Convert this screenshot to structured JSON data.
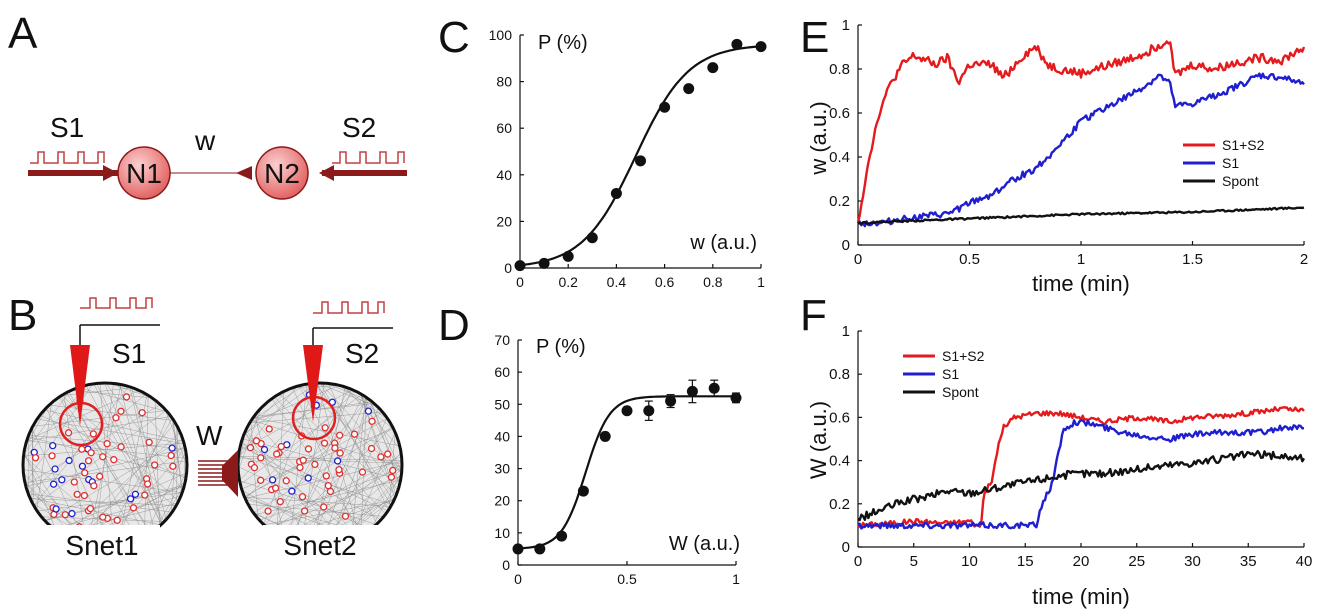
{
  "panels": {
    "A": {
      "label": "A",
      "s1": "S1",
      "s2": "S2",
      "w": "w",
      "n1": "N1",
      "n2": "N2"
    },
    "B": {
      "label": "B",
      "s1": "S1",
      "s2": "S2",
      "W": "W",
      "snet1": "Snet1",
      "snet2": "Snet2"
    }
  },
  "colors": {
    "dark_red": "#8B1A1A",
    "stim_red": "#E03030",
    "neuron_fill": "#F08080",
    "red_series": "#E41A1C",
    "blue_series": "#1F1FCF",
    "black_series": "#111111"
  },
  "chart_data": [
    {
      "id": "C",
      "panel_label": "C",
      "type": "scatter",
      "ylabel": "P (%)",
      "xlabel": "w (a.u.)",
      "xlim": [
        0,
        1
      ],
      "ylim": [
        0,
        100
      ],
      "xticks": [
        "0",
        "0.2",
        "0.4",
        "0.6",
        "0.8",
        "1"
      ],
      "yticks": [
        "0",
        "20",
        "40",
        "60",
        "80",
        "100"
      ],
      "points": [
        [
          0,
          1
        ],
        [
          0.1,
          2
        ],
        [
          0.2,
          5
        ],
        [
          0.3,
          13
        ],
        [
          0.4,
          32
        ],
        [
          0.5,
          46
        ],
        [
          0.6,
          69
        ],
        [
          0.7,
          77
        ],
        [
          0.8,
          86
        ],
        [
          0.9,
          96
        ],
        [
          1.0,
          95
        ]
      ],
      "fit": {
        "type": "sigmoid",
        "min": 0,
        "max": 96,
        "x0": 0.48,
        "k": 0.11
      }
    },
    {
      "id": "D",
      "panel_label": "D",
      "type": "scatter",
      "ylabel": "P (%)",
      "xlabel": "W (a.u.)",
      "xlim": [
        0,
        1
      ],
      "ylim": [
        0,
        70
      ],
      "xticks": [
        "0",
        "0.5",
        "1"
      ],
      "yticks": [
        "0",
        "10",
        "20",
        "30",
        "40",
        "50",
        "60",
        "70"
      ],
      "points": [
        [
          0,
          5
        ],
        [
          0.1,
          5
        ],
        [
          0.2,
          9
        ],
        [
          0.3,
          23
        ],
        [
          0.4,
          40
        ],
        [
          0.5,
          48
        ],
        [
          0.6,
          48
        ],
        [
          0.7,
          51
        ],
        [
          0.8,
          54
        ],
        [
          0.9,
          55
        ],
        [
          1.0,
          52
        ]
      ],
      "errors": [
        0,
        0,
        0,
        0,
        0,
        0,
        3,
        2,
        3.5,
        2.5,
        1.5
      ],
      "fit": {
        "type": "sigmoid",
        "min": 5,
        "max": 52.5,
        "x0": 0.31,
        "k": 0.055
      }
    },
    {
      "id": "E",
      "panel_label": "E",
      "type": "line",
      "ylabel": "w (a.u.)",
      "xlabel": "time (min)",
      "xlim": [
        0,
        2
      ],
      "ylim": [
        0,
        1
      ],
      "xticks": [
        "0",
        "0.5",
        "1",
        "1.5",
        "2"
      ],
      "yticks": [
        "0",
        "0.2",
        "0.4",
        "0.6",
        "0.8",
        "1"
      ],
      "legend_position": "right-middle",
      "series": [
        {
          "name": "S1+S2",
          "color": "#E41A1C",
          "noise": 0.02,
          "points": [
            [
              0,
              0.1
            ],
            [
              0.05,
              0.4
            ],
            [
              0.1,
              0.62
            ],
            [
              0.15,
              0.74
            ],
            [
              0.2,
              0.82
            ],
            [
              0.25,
              0.86
            ],
            [
              0.3,
              0.84
            ],
            [
              0.35,
              0.82
            ],
            [
              0.4,
              0.85
            ],
            [
              0.45,
              0.74
            ],
            [
              0.5,
              0.82
            ],
            [
              0.6,
              0.82
            ],
            [
              0.65,
              0.76
            ],
            [
              0.75,
              0.87
            ],
            [
              0.8,
              0.9
            ],
            [
              0.85,
              0.82
            ],
            [
              0.9,
              0.8
            ],
            [
              1.0,
              0.78
            ],
            [
              1.1,
              0.81
            ],
            [
              1.2,
              0.84
            ],
            [
              1.3,
              0.88
            ],
            [
              1.4,
              0.94
            ],
            [
              1.42,
              0.77
            ],
            [
              1.5,
              0.82
            ],
            [
              1.6,
              0.8
            ],
            [
              1.7,
              0.83
            ],
            [
              1.8,
              0.85
            ],
            [
              1.9,
              0.84
            ],
            [
              2.0,
              0.9
            ]
          ]
        },
        {
          "name": "S1",
          "color": "#1F1FCF",
          "noise": 0.015,
          "points": [
            [
              0,
              0.1
            ],
            [
              0.1,
              0.1
            ],
            [
              0.2,
              0.12
            ],
            [
              0.4,
              0.14
            ],
            [
              0.5,
              0.19
            ],
            [
              0.6,
              0.23
            ],
            [
              0.7,
              0.3
            ],
            [
              0.8,
              0.35
            ],
            [
              0.85,
              0.4
            ],
            [
              0.9,
              0.45
            ],
            [
              1.0,
              0.56
            ],
            [
              1.1,
              0.62
            ],
            [
              1.2,
              0.67
            ],
            [
              1.3,
              0.73
            ],
            [
              1.35,
              0.77
            ],
            [
              1.4,
              0.73
            ],
            [
              1.42,
              0.63
            ],
            [
              1.5,
              0.64
            ],
            [
              1.6,
              0.68
            ],
            [
              1.7,
              0.72
            ],
            [
              1.8,
              0.77
            ],
            [
              1.9,
              0.76
            ],
            [
              2.0,
              0.73
            ]
          ]
        },
        {
          "name": "Spont",
          "color": "#111111",
          "noise": 0.004,
          "points": [
            [
              0,
              0.1
            ],
            [
              0.5,
              0.12
            ],
            [
              1.0,
              0.14
            ],
            [
              1.5,
              0.15
            ],
            [
              2.0,
              0.17
            ]
          ]
        }
      ]
    },
    {
      "id": "F",
      "panel_label": "F",
      "type": "line",
      "ylabel": "W (a.u.)",
      "xlabel": "time (min)",
      "xlim": [
        0,
        40
      ],
      "ylim": [
        0,
        1
      ],
      "xticks": [
        "0",
        "5",
        "10",
        "15",
        "20",
        "25",
        "30",
        "35",
        "40"
      ],
      "yticks": [
        "0",
        "0.2",
        "0.4",
        "0.6",
        "0.8",
        "1"
      ],
      "legend_position": "top-left",
      "series": [
        {
          "name": "S1+S2",
          "color": "#E41A1C",
          "noise": 0.012,
          "points": [
            [
              0,
              0.1
            ],
            [
              3,
              0.11
            ],
            [
              5,
              0.12
            ],
            [
              8,
              0.11
            ],
            [
              10,
              0.12
            ],
            [
              11,
              0.09
            ],
            [
              11.3,
              0.25
            ],
            [
              12,
              0.3
            ],
            [
              12.5,
              0.45
            ],
            [
              13,
              0.55
            ],
            [
              14,
              0.6
            ],
            [
              16,
              0.62
            ],
            [
              18,
              0.62
            ],
            [
              20,
              0.6
            ],
            [
              22,
              0.58
            ],
            [
              25,
              0.6
            ],
            [
              28,
              0.58
            ],
            [
              30,
              0.6
            ],
            [
              33,
              0.61
            ],
            [
              35,
              0.62
            ],
            [
              38,
              0.64
            ],
            [
              40,
              0.63
            ]
          ]
        },
        {
          "name": "S1",
          "color": "#1F1FCF",
          "noise": 0.014,
          "points": [
            [
              0,
              0.1
            ],
            [
              15,
              0.1
            ],
            [
              16,
              0.1
            ],
            [
              16.5,
              0.2
            ],
            [
              17.5,
              0.3
            ],
            [
              18,
              0.45
            ],
            [
              18.5,
              0.55
            ],
            [
              19.5,
              0.58
            ],
            [
              21,
              0.57
            ],
            [
              23,
              0.54
            ],
            [
              25,
              0.52
            ],
            [
              28,
              0.5
            ],
            [
              30,
              0.52
            ],
            [
              33,
              0.53
            ],
            [
              36,
              0.53
            ],
            [
              38,
              0.55
            ],
            [
              40,
              0.55
            ]
          ]
        },
        {
          "name": "Spont",
          "color": "#111111",
          "noise": 0.018,
          "points": [
            [
              0,
              0.13
            ],
            [
              2,
              0.17
            ],
            [
              4,
              0.21
            ],
            [
              6,
              0.23
            ],
            [
              8,
              0.26
            ],
            [
              10,
              0.25
            ],
            [
              12,
              0.27
            ],
            [
              15,
              0.3
            ],
            [
              18,
              0.33
            ],
            [
              20,
              0.34
            ],
            [
              22,
              0.34
            ],
            [
              25,
              0.36
            ],
            [
              28,
              0.38
            ],
            [
              30,
              0.39
            ],
            [
              33,
              0.41
            ],
            [
              35,
              0.43
            ],
            [
              38,
              0.42
            ],
            [
              40,
              0.41
            ]
          ]
        }
      ]
    }
  ]
}
